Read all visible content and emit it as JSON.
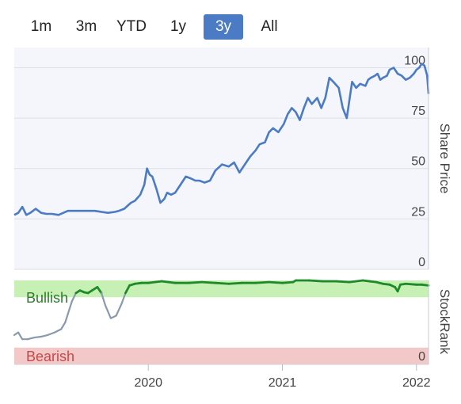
{
  "range_selector": {
    "buttons": [
      {
        "label": "1m",
        "active": false
      },
      {
        "label": "3m",
        "active": false
      },
      {
        "label": "YTD",
        "active": false
      },
      {
        "label": "1y",
        "active": false
      },
      {
        "label": "3y",
        "active": true
      },
      {
        "label": "All",
        "active": false
      }
    ]
  },
  "colors": {
    "price_line": "#4a7bc4",
    "rank_bull": "#1f8a2a",
    "rank_neutral": "#8a9aac",
    "bullish_zone": "#c6f0b4",
    "bearish_zone": "#f2c9c8",
    "bearish_text": "#c44a4a",
    "bullish_text": "#2f7a2f",
    "plot_bg": "#f4f6fb",
    "grid": "#dcdfe6"
  },
  "chart_data": [
    {
      "type": "line",
      "ylabel": "Share Price",
      "ylim": [
        0,
        110
      ],
      "yticks": [
        "0",
        "25",
        "50",
        "75",
        "100"
      ],
      "x_range": [
        2019.0,
        2022.09
      ],
      "xticks": [
        "2020",
        "2021",
        "2022"
      ],
      "series": [
        {
          "x": [
            2019.0,
            2019.03,
            2019.06,
            2019.09,
            2019.12,
            2019.16,
            2019.2,
            2019.24,
            2019.28,
            2019.33,
            2019.4,
            2019.43,
            2019.48,
            2019.55,
            2019.6,
            2019.65,
            2019.7,
            2019.75,
            2019.78,
            2019.82,
            2019.87,
            2019.9,
            2019.94,
            2019.97,
            2019.99,
            2020.01,
            2020.03,
            2020.06,
            2020.09,
            2020.12,
            2020.14,
            2020.17,
            2020.2,
            2020.24,
            2020.28,
            2020.32,
            2020.35,
            2020.38,
            2020.42,
            2020.46,
            2020.5,
            2020.55,
            2020.6,
            2020.64,
            2020.68,
            2020.72,
            2020.76,
            2020.8,
            2020.83,
            2020.87,
            2020.9,
            2020.93,
            2020.97,
            2021.01,
            2021.04,
            2021.07,
            2021.1,
            2021.13,
            2021.16,
            2021.19,
            2021.22,
            2021.26,
            2021.29,
            2021.32,
            2021.35,
            2021.38,
            2021.42,
            2021.45,
            2021.48,
            2021.52,
            2021.55,
            2021.58,
            2021.62,
            2021.64,
            2021.66,
            2021.69,
            2021.71,
            2021.73,
            2021.75,
            2021.78,
            2021.8,
            2021.83,
            2021.86,
            2021.89,
            2021.92,
            2021.95,
            2021.98,
            2022.0,
            2022.02,
            2022.04,
            2022.06,
            2022.08,
            2022.09
          ],
          "y": [
            27,
            28,
            31,
            27,
            28,
            30,
            28,
            27.5,
            27.5,
            27,
            29,
            29,
            29,
            29,
            29,
            28.5,
            28,
            28.5,
            29,
            30,
            33,
            34,
            37,
            42,
            50,
            47,
            46,
            40,
            33,
            35,
            38,
            37,
            38,
            42,
            46,
            45,
            44,
            44,
            43,
            44,
            49,
            52,
            51,
            53,
            48,
            52,
            56,
            59,
            62,
            63,
            68,
            70,
            68,
            72,
            77,
            80,
            78,
            74,
            80,
            85,
            82,
            85,
            80,
            85,
            95,
            93,
            90,
            80,
            75,
            93,
            90,
            92,
            91,
            94,
            95,
            96,
            97,
            94,
            95,
            96,
            99,
            100,
            97,
            96,
            94,
            95,
            97,
            99,
            100,
            102,
            101,
            96,
            87
          ]
        }
      ]
    },
    {
      "type": "line",
      "ylabel": "StockRank",
      "ylim": [
        0,
        100
      ],
      "yticks": [
        "0"
      ],
      "zones": [
        {
          "label": "Bullish",
          "from": 80,
          "to": 100
        },
        {
          "label": "Bearish",
          "from": 0,
          "to": 20
        }
      ],
      "series": [
        {
          "x": [
            2019.0,
            2019.03,
            2019.06,
            2019.1,
            2019.15,
            2019.2,
            2019.25,
            2019.3,
            2019.35,
            2019.38,
            2019.4,
            2019.43,
            2019.46,
            2019.49,
            2019.52,
            2019.55,
            2019.58,
            2019.62,
            2019.65,
            2019.68,
            2019.72,
            2019.76,
            2019.8,
            2019.83,
            2019.86,
            2019.9,
            2019.95,
            2020.0,
            2020.05,
            2020.1,
            2020.15,
            2020.2,
            2020.3,
            2020.4,
            2020.5,
            2020.6,
            2020.7,
            2020.8,
            2020.9,
            2021.0,
            2021.08,
            2021.1,
            2021.2,
            2021.3,
            2021.4,
            2021.5,
            2021.6,
            2021.65,
            2021.7,
            2021.75,
            2021.8,
            2021.84,
            2021.86,
            2021.88,
            2021.92,
            2022.0,
            2022.04,
            2022.09
          ],
          "y": [
            35,
            38,
            30,
            30,
            32,
            33,
            35,
            38,
            42,
            50,
            60,
            75,
            85,
            88,
            86,
            85,
            88,
            92,
            85,
            70,
            55,
            58,
            72,
            85,
            94,
            96,
            97,
            97,
            98,
            99,
            98,
            97,
            97,
            98,
            97,
            96,
            97,
            97,
            98,
            97,
            98,
            100,
            100,
            99,
            99,
            98,
            100,
            99,
            98,
            96,
            95,
            92,
            87,
            95,
            96,
            95,
            95,
            94
          ]
        }
      ]
    }
  ]
}
